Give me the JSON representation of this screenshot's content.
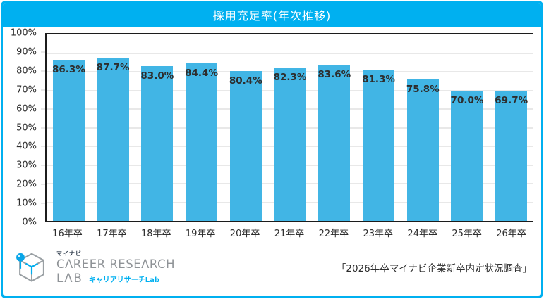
{
  "title": "採用充足率(年次推移)",
  "colors": {
    "accent": "#00B0F0",
    "bar": "#41B5E5",
    "grid": "#E8E8E8",
    "axis": "#1C1C1C",
    "label": "#2D2D2D",
    "logo_gray": "#8F9397"
  },
  "chart_data": {
    "type": "bar",
    "title": "採用充足率(年次推移)",
    "categories": [
      "16年卒",
      "17年卒",
      "18年卒",
      "19年卒",
      "20年卒",
      "21年卒",
      "22年卒",
      "23年卒",
      "24年卒",
      "25年卒",
      "26年卒"
    ],
    "values": [
      86.3,
      87.7,
      83.0,
      84.4,
      80.4,
      82.3,
      83.6,
      81.3,
      75.8,
      70.0,
      69.7
    ],
    "value_labels": [
      "86.3%",
      "87.7%",
      "83.0%",
      "84.4%",
      "80.4%",
      "82.3%",
      "83.6%",
      "81.3%",
      "75.8%",
      "70.0%",
      "69.7%"
    ],
    "xlabel": "",
    "ylabel": "",
    "ylim": [
      0,
      100
    ],
    "yticks": [
      "100%",
      "90%",
      "80%",
      "70%",
      "60%",
      "50%",
      "40%",
      "30%",
      "20%",
      "10%",
      "0%"
    ],
    "grid": true,
    "legend": "none"
  },
  "footer": {
    "logo": {
      "brand_small": "マイナビ",
      "brand_main": "CΛREER RESEΛRCH",
      "brand_lab": "LΛB",
      "brand_sub_jp": "キャリアリサーチLab"
    },
    "source": "「2026年卒マイナビ企業新卒内定状況調査」"
  }
}
